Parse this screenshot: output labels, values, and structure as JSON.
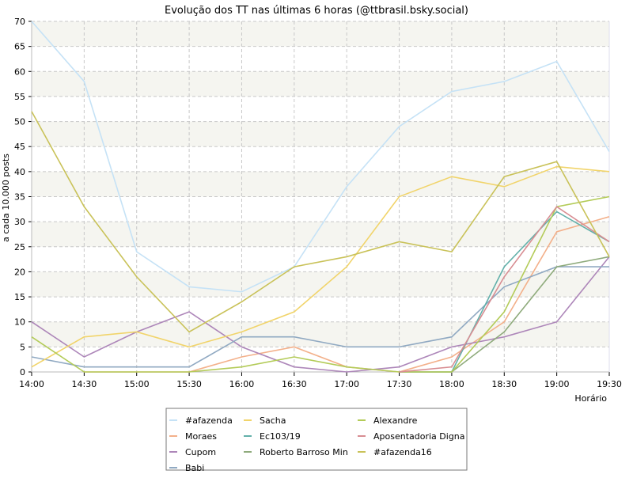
{
  "chart_data": {
    "type": "line",
    "title": "Evolução dos TT nas últimas 6 horas (@ttbrasil.bsky.social)",
    "xlabel": "Horário",
    "ylabel": "a cada 10.000 posts",
    "x": [
      "14:00",
      "14:30",
      "15:00",
      "15:30",
      "16:00",
      "16:30",
      "17:00",
      "17:30",
      "18:00",
      "18:30",
      "19:00",
      "19:30"
    ],
    "ylim": [
      0,
      70
    ],
    "yticks": [
      0,
      5,
      10,
      15,
      20,
      25,
      30,
      35,
      40,
      45,
      50,
      55,
      60,
      65,
      70
    ],
    "grid": true,
    "legend_position": "bottom",
    "series": [
      {
        "name": "#afazenda",
        "color": "#c5e2f6",
        "values": [
          70,
          58,
          24,
          17,
          16,
          21,
          37,
          49,
          56,
          58,
          62,
          44
        ]
      },
      {
        "name": "Moraes",
        "color": "#f3b08a",
        "values": [
          null,
          0,
          0,
          0,
          3,
          5,
          1,
          0,
          3,
          10,
          28,
          31
        ]
      },
      {
        "name": "Cupom",
        "color": "#ad86b9",
        "values": [
          10,
          3,
          8,
          12,
          5,
          1,
          0,
          1,
          5,
          7,
          10,
          23
        ]
      },
      {
        "name": "Babi",
        "color": "#90a9c2",
        "values": [
          3,
          1,
          1,
          1,
          7,
          7,
          5,
          5,
          7,
          17,
          21,
          21
        ]
      },
      {
        "name": "Sacha",
        "color": "#f1d46a",
        "values": [
          1,
          7,
          8,
          5,
          8,
          12,
          21,
          35,
          39,
          37,
          41,
          40
        ]
      },
      {
        "name": "Ec103/19",
        "color": "#62b0aa",
        "values": [
          null,
          null,
          null,
          null,
          null,
          null,
          null,
          0,
          0,
          21,
          32,
          26
        ]
      },
      {
        "name": "Roberto Barroso Min",
        "color": "#8fab7c",
        "values": [
          null,
          null,
          null,
          null,
          null,
          null,
          null,
          0,
          0,
          8,
          21,
          23
        ]
      },
      {
        "name": "Alexandre",
        "color": "#b3cb58",
        "values": [
          7,
          0,
          0,
          0,
          1,
          3,
          1,
          0,
          0,
          12,
          33,
          35
        ]
      },
      {
        "name": "Aposentadoria Digna",
        "color": "#d88d92",
        "values": [
          null,
          null,
          null,
          null,
          null,
          null,
          null,
          0,
          1,
          19,
          33,
          26
        ]
      },
      {
        "name": "#afazenda16",
        "color": "#c9c259",
        "values": [
          52,
          33,
          19,
          8,
          14,
          21,
          23,
          26,
          24,
          39,
          42,
          23
        ]
      }
    ]
  }
}
